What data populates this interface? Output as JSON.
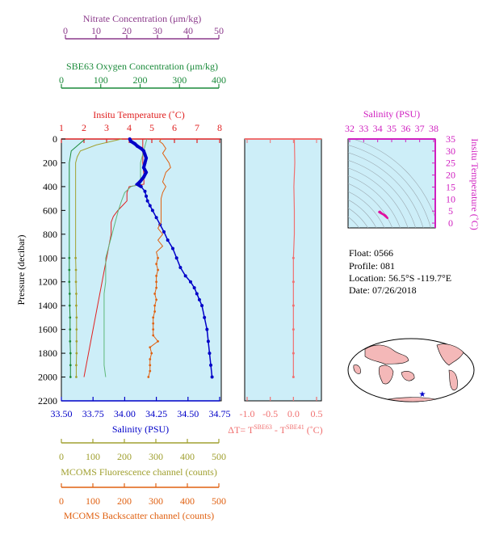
{
  "float_info": {
    "float": "Float:  0566",
    "profile": "Profile:  081",
    "location": "Location:  56.5°S  -119.7°E",
    "date": "Date:  07/26/2018"
  },
  "colors": {
    "nitrate": "#8b3a8b",
    "oxygen": "#1a8a3a",
    "temperature": "#e02020",
    "salinity": "#0000c8",
    "fluorescence": "#a0a030",
    "backscatter": "#e06010",
    "delta_t": "#f07070",
    "ts_axis": "#d020c0",
    "ts_blob": "#e010a0",
    "panel_bg": "#cdeef8"
  },
  "axes": {
    "nitrate": {
      "label": "Nitrate Concentration (μm/kg)",
      "ticks": [
        "0",
        "10",
        "20",
        "30",
        "40",
        "50"
      ],
      "range": [
        0,
        50
      ]
    },
    "oxygen": {
      "label": "SBE63 Oxygen Concentration (μm/kg)",
      "ticks": [
        "0",
        "100",
        "200",
        "300",
        "400"
      ],
      "range": [
        0,
        400
      ]
    },
    "temperature": {
      "label": "Insitu Temperature (˚C)",
      "ticks": [
        "1",
        "2",
        "3",
        "4",
        "5",
        "6",
        "7",
        "8"
      ],
      "range": [
        1,
        8
      ]
    },
    "pressure": {
      "label": "Pressure (decibar)",
      "ticks": [
        "0",
        "200",
        "400",
        "600",
        "800",
        "1000",
        "1200",
        "1400",
        "1600",
        "1800",
        "2000",
        "2200"
      ],
      "range": [
        0,
        2200
      ]
    },
    "salinity": {
      "label": "Salinity (PSU)",
      "ticks": [
        "33.50",
        "33.75",
        "34.00",
        "34.25",
        "34.50",
        "34.75"
      ],
      "range": [
        33.5,
        34.75
      ]
    },
    "delta_t": {
      "label": "ΔT= T",
      "sup1": "SBE63",
      "mid": " - T",
      "sup2": "SBE41",
      "unit": " (˚C)",
      "ticks": [
        "-1.0",
        "-0.5",
        "0.0",
        "0.5"
      ],
      "range": [
        -1.0,
        0.5
      ]
    },
    "fluorescence": {
      "label": "MCOMS Fluorescence channel (counts)",
      "ticks": [
        "0",
        "100",
        "200",
        "300",
        "400",
        "500"
      ],
      "range": [
        0,
        500
      ]
    },
    "backscatter": {
      "label": "MCOMS Backscatter channel (counts)",
      "ticks": [
        "0",
        "100",
        "200",
        "300",
        "400",
        "500"
      ],
      "range": [
        0,
        500
      ]
    },
    "ts_salinity": {
      "label": "Salinity (PSU)",
      "ticks": [
        "32",
        "33",
        "34",
        "35",
        "36",
        "37",
        "38"
      ],
      "range": [
        32,
        38
      ]
    },
    "ts_temperature": {
      "label": "Insitu Temperature (˚C)",
      "ticks": [
        "0",
        "5",
        "10",
        "15",
        "20",
        "25",
        "30",
        "35"
      ],
      "range": [
        -2,
        35
      ]
    }
  },
  "chart_data": {
    "type": "line",
    "y_axis": "pressure (decibar)",
    "ylim": [
      2200,
      0
    ],
    "series": [
      {
        "key": "salinity",
        "points": [
          [
            34.04,
            0
          ],
          [
            34.05,
            20
          ],
          [
            34.08,
            40
          ],
          [
            34.1,
            60
          ],
          [
            34.13,
            80
          ],
          [
            34.15,
            100
          ],
          [
            34.16,
            130
          ],
          [
            34.17,
            160
          ],
          [
            34.16,
            200
          ],
          [
            34.15,
            240
          ],
          [
            34.17,
            280
          ],
          [
            34.15,
            320
          ],
          [
            34.12,
            360
          ],
          [
            34.1,
            380
          ],
          [
            34.13,
            400
          ],
          [
            34.16,
            440
          ],
          [
            34.17,
            480
          ],
          [
            34.18,
            520
          ],
          [
            34.2,
            560
          ],
          [
            34.22,
            600
          ],
          [
            34.25,
            660
          ],
          [
            34.28,
            720
          ],
          [
            34.31,
            780
          ],
          [
            34.34,
            850
          ],
          [
            34.38,
            920
          ],
          [
            34.41,
            1000
          ],
          [
            34.44,
            1080
          ],
          [
            34.48,
            1150
          ],
          [
            34.52,
            1200
          ],
          [
            34.55,
            1250
          ],
          [
            34.57,
            1300
          ],
          [
            34.59,
            1350
          ],
          [
            34.61,
            1400
          ],
          [
            34.63,
            1500
          ],
          [
            34.65,
            1600
          ],
          [
            34.66,
            1700
          ],
          [
            34.67,
            1800
          ],
          [
            34.68,
            1900
          ],
          [
            34.69,
            2000
          ]
        ]
      },
      {
        "key": "temperature",
        "points": [
          [
            4.6,
            0
          ],
          [
            4.6,
            100
          ],
          [
            4.6,
            200
          ],
          [
            4.65,
            300
          ],
          [
            4.65,
            380
          ],
          [
            4.0,
            400
          ],
          [
            3.9,
            450
          ],
          [
            3.9,
            520
          ],
          [
            3.7,
            560
          ],
          [
            3.5,
            600
          ],
          [
            3.3,
            650
          ],
          [
            3.2,
            700
          ],
          [
            3.2,
            800
          ],
          [
            3.1,
            900
          ],
          [
            3.0,
            1000
          ],
          [
            2.9,
            1100
          ],
          [
            2.8,
            1200
          ],
          [
            2.7,
            1300
          ],
          [
            2.6,
            1400
          ],
          [
            2.5,
            1500
          ],
          [
            2.4,
            1600
          ],
          [
            2.3,
            1700
          ],
          [
            2.2,
            1800
          ],
          [
            2.1,
            1900
          ],
          [
            2.0,
            2000
          ]
        ]
      },
      {
        "key": "oxygen",
        "points": [
          [
            60,
            0
          ],
          [
            25,
            100
          ],
          [
            20,
            200
          ],
          [
            20,
            300
          ],
          [
            20,
            400
          ],
          [
            20,
            500
          ],
          [
            20,
            600
          ],
          [
            20,
            700
          ],
          [
            20,
            800
          ],
          [
            20,
            900
          ],
          [
            20,
            1000
          ],
          [
            20,
            1100
          ],
          [
            20,
            1200
          ],
          [
            21,
            1300
          ],
          [
            21,
            1400
          ],
          [
            22,
            1500
          ],
          [
            22,
            1600
          ],
          [
            22,
            1700
          ],
          [
            23,
            1800
          ],
          [
            23,
            1900
          ],
          [
            23,
            2000
          ]
        ]
      },
      {
        "key": "nitrate",
        "points": [
          [
            27,
            0
          ],
          [
            26,
            100
          ],
          [
            25,
            200
          ],
          [
            25,
            300
          ],
          [
            25,
            380
          ],
          [
            22,
            400
          ],
          [
            20,
            450
          ],
          [
            19,
            520
          ],
          [
            18,
            600
          ],
          [
            17,
            700
          ],
          [
            16,
            800
          ],
          [
            15,
            900
          ],
          [
            14,
            1000
          ],
          [
            14,
            1100
          ],
          [
            14,
            1200
          ],
          [
            13.5,
            1300
          ],
          [
            13.5,
            1400
          ],
          [
            13.5,
            1500
          ],
          [
            13.5,
            1600
          ],
          [
            13.5,
            1700
          ],
          [
            13.5,
            1800
          ],
          [
            13.5,
            1900
          ],
          [
            14,
            2000
          ]
        ]
      },
      {
        "key": "fluorescence",
        "points": [
          [
            190,
            0
          ],
          [
            110,
            50
          ],
          [
            60,
            100
          ],
          [
            50,
            150
          ],
          [
            45,
            200
          ],
          [
            45,
            300
          ],
          [
            45,
            400
          ],
          [
            45,
            500
          ],
          [
            45,
            600
          ],
          [
            45,
            700
          ],
          [
            45,
            800
          ],
          [
            45,
            900
          ],
          [
            45,
            1000
          ],
          [
            46,
            1100
          ],
          [
            46,
            1200
          ],
          [
            47,
            1300
          ],
          [
            47,
            1400
          ],
          [
            48,
            1500
          ],
          [
            48,
            1600
          ],
          [
            48,
            1700
          ],
          [
            48,
            1800
          ],
          [
            47,
            1900
          ],
          [
            47,
            2000
          ]
        ]
      },
      {
        "key": "backscatter",
        "points": [
          [
            315,
            0
          ],
          [
            310,
            20
          ],
          [
            320,
            40
          ],
          [
            330,
            80
          ],
          [
            320,
            120
          ],
          [
            330,
            160
          ],
          [
            340,
            200
          ],
          [
            345,
            240
          ],
          [
            330,
            280
          ],
          [
            325,
            320
          ],
          [
            320,
            360
          ],
          [
            330,
            400
          ],
          [
            320,
            450
          ],
          [
            315,
            500
          ],
          [
            315,
            550
          ],
          [
            315,
            600
          ],
          [
            315,
            650
          ],
          [
            315,
            700
          ],
          [
            305,
            750
          ],
          [
            320,
            800
          ],
          [
            305,
            850
          ],
          [
            320,
            900
          ],
          [
            300,
            950
          ],
          [
            305,
            1000
          ],
          [
            300,
            1050
          ],
          [
            305,
            1100
          ],
          [
            300,
            1150
          ],
          [
            300,
            1200
          ],
          [
            300,
            1250
          ],
          [
            295,
            1300
          ],
          [
            300,
            1350
          ],
          [
            295,
            1400
          ],
          [
            295,
            1450
          ],
          [
            290,
            1500
          ],
          [
            290,
            1550
          ],
          [
            290,
            1600
          ],
          [
            290,
            1650
          ],
          [
            305,
            1700
          ],
          [
            280,
            1750
          ],
          [
            285,
            1800
          ],
          [
            280,
            1850
          ],
          [
            280,
            1900
          ],
          [
            280,
            1950
          ],
          [
            275,
            2000
          ]
        ]
      },
      {
        "key": "delta_t",
        "points": [
          [
            0.02,
            0
          ],
          [
            0.03,
            200
          ],
          [
            0.01,
            400
          ],
          [
            0.02,
            600
          ],
          [
            0.02,
            800
          ],
          [
            0.0,
            1000
          ],
          [
            0.0,
            1200
          ],
          [
            0.0,
            1400
          ],
          [
            0.0,
            1600
          ],
          [
            0.0,
            1800
          ],
          [
            0.0,
            2000
          ]
        ]
      }
    ],
    "ts_points": [
      [
        34.1,
        4.6
      ],
      [
        34.2,
        4.2
      ],
      [
        34.4,
        3.6
      ],
      [
        34.6,
        2.6
      ],
      [
        34.7,
        2.1
      ],
      [
        34.55,
        3.2
      ],
      [
        34.3,
        4.0
      ],
      [
        34.15,
        4.8
      ]
    ]
  }
}
